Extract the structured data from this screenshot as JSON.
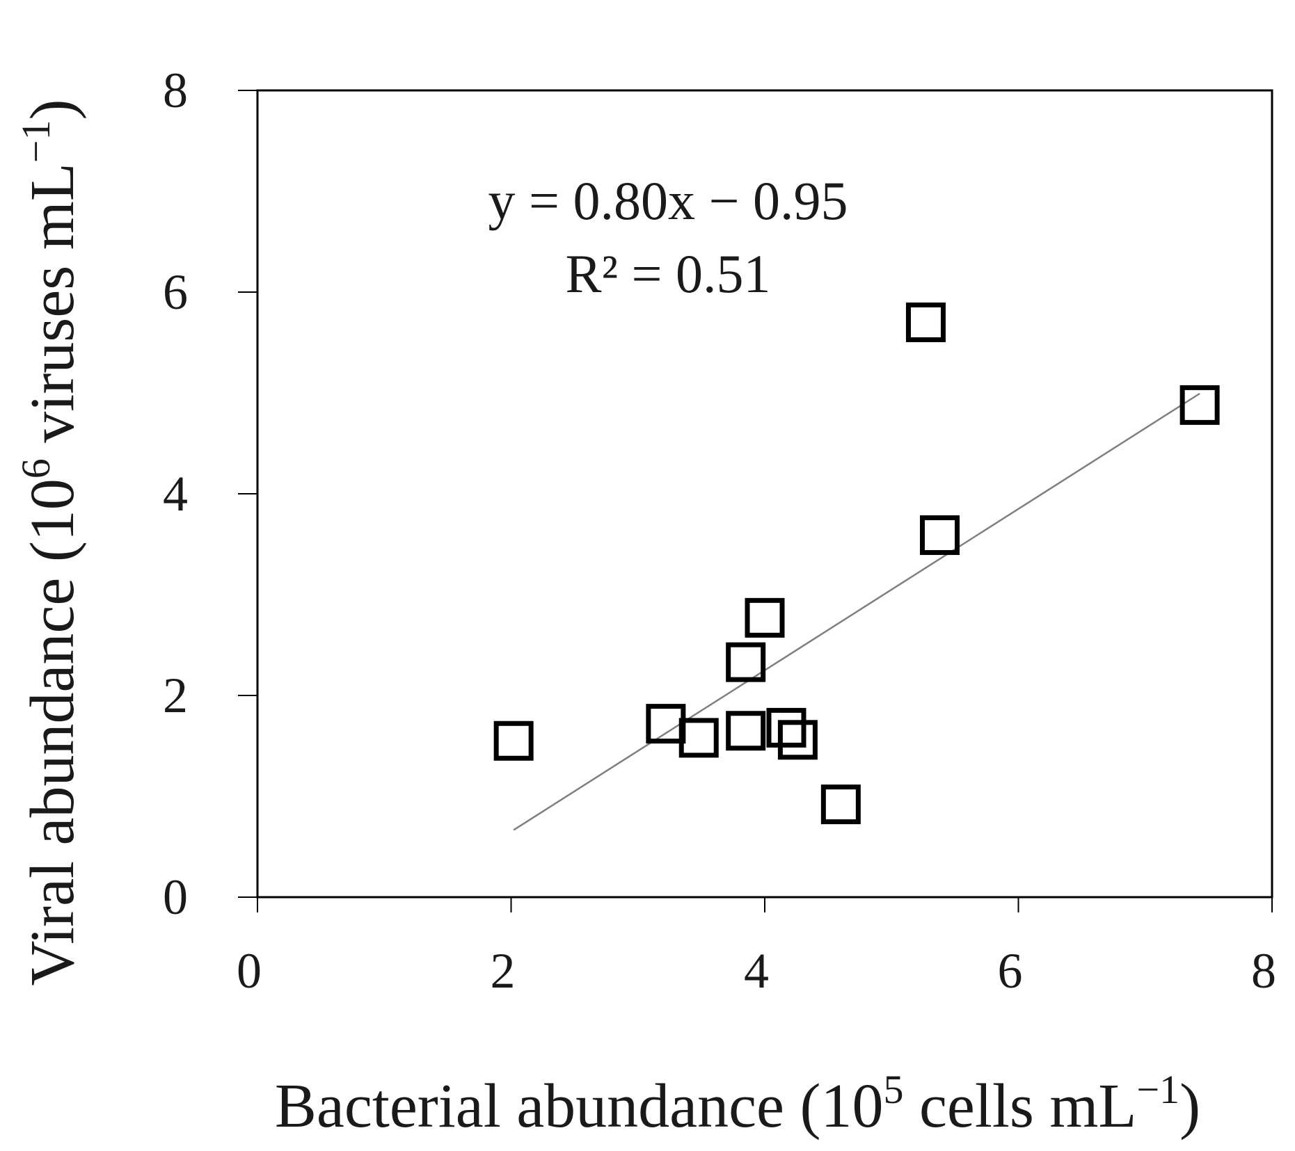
{
  "chart_data": {
    "type": "scatter",
    "title": "",
    "x_label": {
      "prefix": "Bacterial abundance (10",
      "exp1": "5",
      "mid": " cells mL",
      "exp2": "−1",
      "suffix": ")"
    },
    "y_label": {
      "prefix": "Viral abundance (10",
      "exp1": "6",
      "mid": " viruses mL",
      "exp2": "−1",
      "suffix": ")"
    },
    "xlim": [
      0,
      8
    ],
    "ylim": [
      0,
      8
    ],
    "x_ticks": [
      "0",
      "2",
      "4",
      "6",
      "8"
    ],
    "y_ticks": [
      "0",
      "2",
      "4",
      "6",
      "8"
    ],
    "grid": false,
    "legend": "none",
    "series": [
      {
        "marker": "open-square",
        "points": [
          {
            "x": 2.02,
            "y": 1.55
          },
          {
            "x": 3.22,
            "y": 1.72
          },
          {
            "x": 3.48,
            "y": 1.58
          },
          {
            "x": 3.85,
            "y": 2.33
          },
          {
            "x": 3.85,
            "y": 1.65
          },
          {
            "x": 4.0,
            "y": 2.77
          },
          {
            "x": 4.17,
            "y": 1.68
          },
          {
            "x": 4.26,
            "y": 1.56
          },
          {
            "x": 4.6,
            "y": 0.92
          },
          {
            "x": 5.27,
            "y": 5.7
          },
          {
            "x": 5.38,
            "y": 3.59
          },
          {
            "x": 7.43,
            "y": 4.88
          }
        ]
      }
    ],
    "trendline": {
      "type": "linear",
      "slope": 0.8,
      "intercept": -0.95,
      "x_range": [
        2.02,
        7.43
      ]
    },
    "annotations": {
      "equation": "y = 0.80x − 0.95",
      "r_squared": "R² = 0.51"
    },
    "colors": {
      "marker_stroke": "#000000",
      "trendline": "#7f7f7f",
      "axis": "#000000"
    }
  }
}
